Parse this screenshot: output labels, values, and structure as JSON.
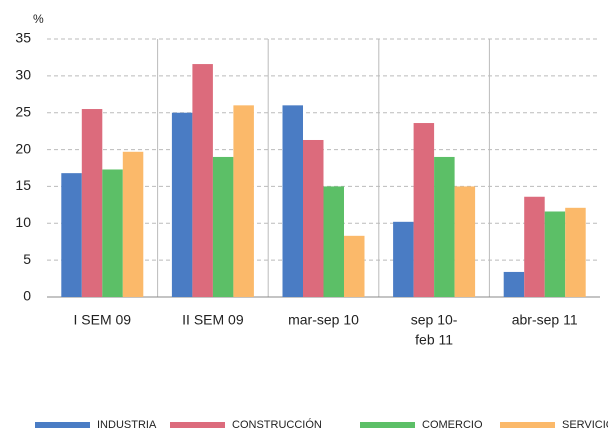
{
  "chart_data": {
    "type": "bar",
    "y_label": "%",
    "categories": [
      [
        "I SEM 09"
      ],
      [
        "II SEM 09"
      ],
      [
        "mar-sep 10"
      ],
      [
        "sep 10-",
        "feb 11"
      ],
      [
        "abr-sep 11"
      ]
    ],
    "series": [
      {
        "name": "INDUSTRIA",
        "color": "#4a7cc4",
        "values": [
          16.8,
          25,
          26,
          10.2,
          3.4
        ]
      },
      {
        "name": "CONSTRUCCIÓN",
        "color": "#dc6b7c",
        "values": [
          25.5,
          31.6,
          21.3,
          23.6,
          13.6
        ]
      },
      {
        "name": "COMERCIO",
        "color": "#5cbf67",
        "values": [
          17.3,
          19,
          15,
          19,
          11.6
        ]
      },
      {
        "name": "SERVICIO",
        "color": "#fbb96a",
        "values": [
          19.7,
          26,
          8.3,
          15,
          12.1
        ]
      }
    ],
    "ylim": [
      0,
      35
    ],
    "yticks": [
      0,
      5,
      10,
      15,
      20,
      25,
      30,
      35
    ],
    "grid": true,
    "legend": "bottom"
  }
}
